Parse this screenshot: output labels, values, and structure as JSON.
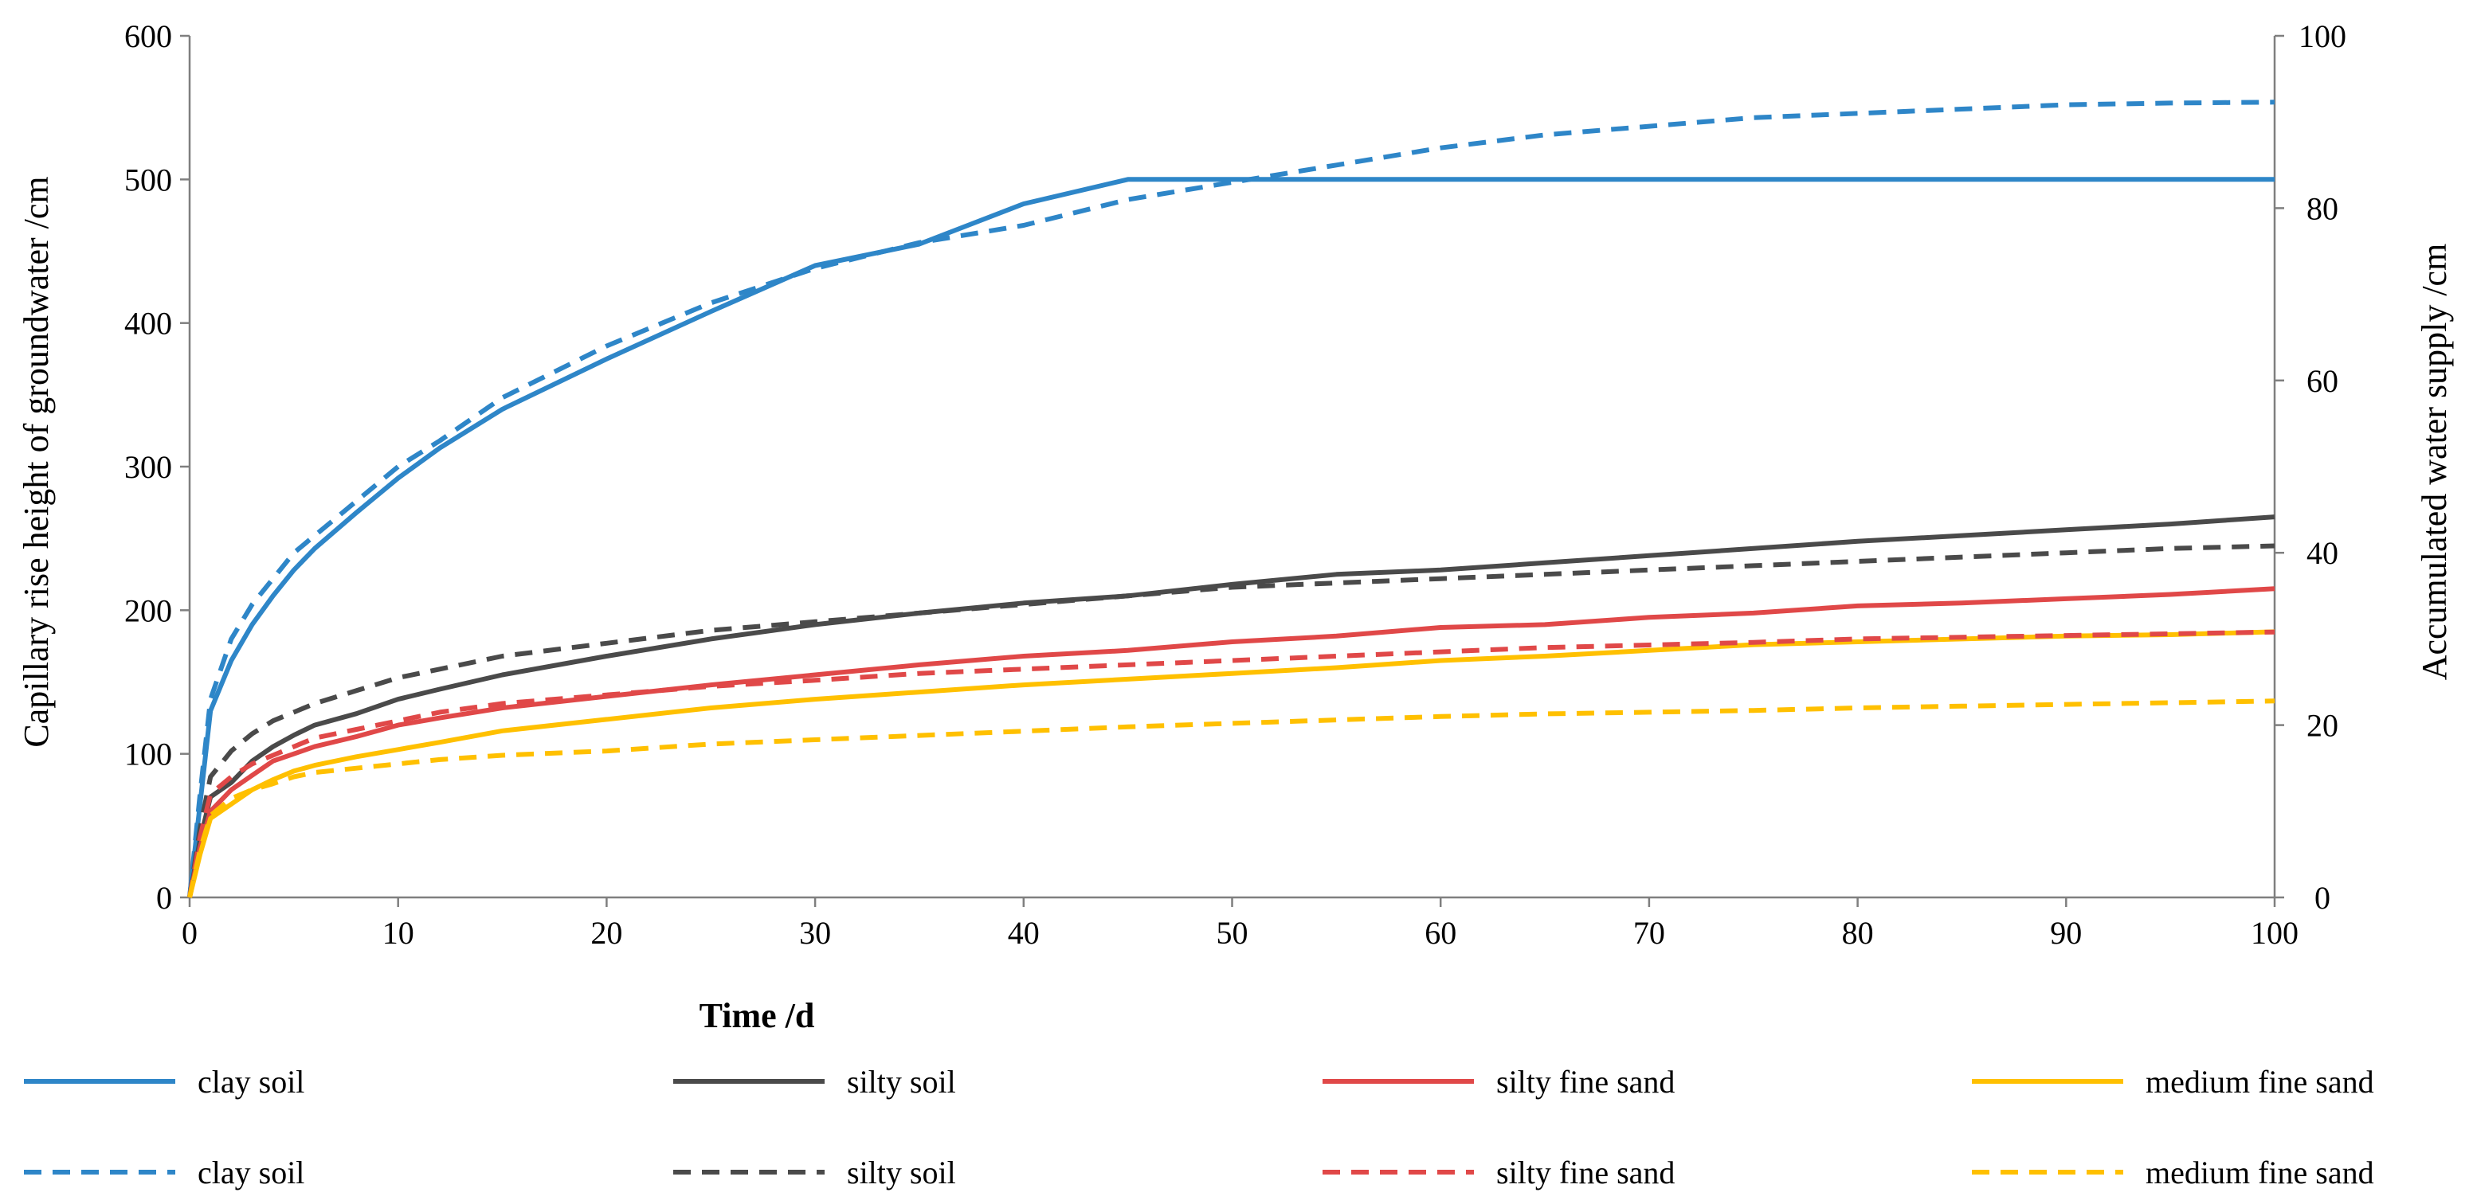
{
  "chart_data": {
    "type": "line",
    "title": "",
    "xlabel": "Time /d",
    "ylabel_left": "Capillary rise height of groundwater /cm",
    "ylabel_right": "Accumulated water supply /cm",
    "xlim": [
      0,
      100
    ],
    "ylim_left": [
      0,
      600
    ],
    "ylim_right": [
      0,
      100
    ],
    "x_ticks": [
      "0",
      "10",
      "20",
      "30",
      "40",
      "50",
      "60",
      "70",
      "80",
      "90",
      "100"
    ],
    "y_left_ticks": [
      "0",
      "100",
      "200",
      "300",
      "400",
      "500",
      "600"
    ],
    "y_right_ticks": [
      "0",
      "20",
      "40",
      "60",
      "80",
      "100"
    ],
    "grid": false,
    "legend_position": "bottom",
    "x": [
      0,
      0.5,
      1,
      2,
      3,
      4,
      5,
      6,
      8,
      10,
      12,
      15,
      20,
      25,
      30,
      35,
      40,
      45,
      50,
      55,
      60,
      65,
      70,
      75,
      80,
      85,
      90,
      95,
      100
    ],
    "series": [
      {
        "name": "clay soil",
        "axis": "left",
        "style": "solid",
        "color": "#2e86c8",
        "values": [
          0,
          65,
          130,
          165,
          190,
          210,
          228,
          243,
          268,
          292,
          313,
          340,
          375,
          408,
          440,
          455,
          483,
          500,
          500,
          500,
          500,
          500,
          500,
          500,
          500,
          500,
          500,
          500,
          500
        ]
      },
      {
        "name": "silty soil",
        "axis": "left",
        "style": "solid",
        "color": "#4a4a4a",
        "values": [
          0,
          40,
          70,
          80,
          95,
          105,
          113,
          120,
          128,
          138,
          145,
          155,
          168,
          180,
          190,
          198,
          205,
          210,
          218,
          225,
          228,
          233,
          238,
          243,
          248,
          252,
          256,
          260,
          265
        ]
      },
      {
        "name": "silty fine sand",
        "axis": "left",
        "style": "solid",
        "color": "#e04848",
        "values": [
          0,
          35,
          60,
          75,
          85,
          95,
          100,
          105,
          112,
          120,
          125,
          132,
          140,
          148,
          155,
          162,
          168,
          172,
          178,
          182,
          188,
          190,
          195,
          198,
          203,
          205,
          208,
          211,
          215
        ]
      },
      {
        "name": "medium fine sand",
        "axis": "left",
        "style": "solid",
        "color": "#ffc000",
        "values": [
          0,
          30,
          55,
          65,
          75,
          82,
          88,
          92,
          98,
          103,
          108,
          116,
          124,
          132,
          138,
          143,
          148,
          152,
          156,
          160,
          165,
          168,
          172,
          176,
          178,
          180,
          182,
          183,
          185
        ]
      },
      {
        "name": "clay soil",
        "axis": "right",
        "style": "dashed",
        "color": "#2e86c8",
        "values": [
          0,
          12,
          23,
          30,
          34,
          37,
          40,
          42,
          46,
          50,
          53,
          58,
          64,
          69,
          73,
          76,
          78,
          81,
          83,
          85,
          87,
          88.5,
          89.5,
          90.5,
          91,
          91.5,
          92,
          92.2,
          92.3
        ]
      },
      {
        "name": "silty soil",
        "axis": "right",
        "style": "dashed",
        "color": "#4a4a4a",
        "values": [
          0,
          8,
          14,
          17,
          19,
          20.5,
          21.5,
          22.5,
          24,
          25.5,
          26.5,
          28,
          29.5,
          31,
          32,
          33,
          34,
          35,
          36,
          36.5,
          37,
          37.5,
          38,
          38.5,
          39,
          39.5,
          40,
          40.5,
          40.8
        ]
      },
      {
        "name": "silty fine sand",
        "axis": "right",
        "style": "dashed",
        "color": "#e04848",
        "values": [
          0,
          7,
          12,
          14,
          15.5,
          16.5,
          17.5,
          18.5,
          19.5,
          20.5,
          21.5,
          22.5,
          23.5,
          24.5,
          25.2,
          26,
          26.5,
          27,
          27.5,
          28,
          28.5,
          29,
          29.3,
          29.6,
          30,
          30.2,
          30.4,
          30.6,
          30.8
        ]
      },
      {
        "name": "medium fine sand",
        "axis": "right",
        "style": "dashed",
        "color": "#ffc000",
        "values": [
          0,
          5.5,
          9.5,
          11.5,
          12.5,
          13.2,
          14,
          14.5,
          15,
          15.5,
          16,
          16.5,
          17,
          17.8,
          18.3,
          18.8,
          19.3,
          19.8,
          20.2,
          20.6,
          21,
          21.3,
          21.5,
          21.7,
          22,
          22.2,
          22.4,
          22.6,
          22.8
        ]
      }
    ]
  }
}
